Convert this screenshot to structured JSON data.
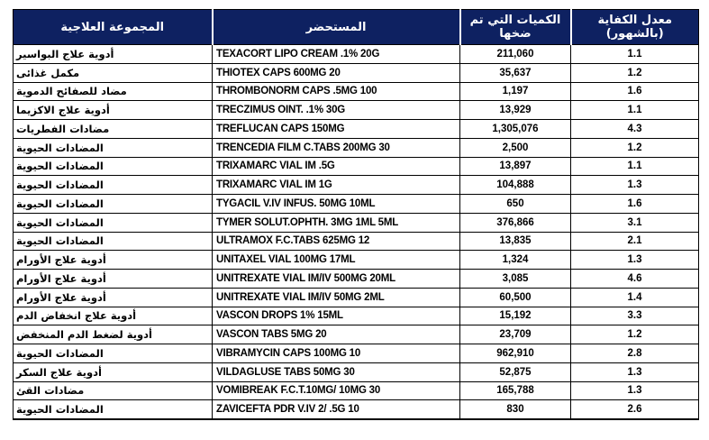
{
  "colors": {
    "header_bg": "#0e2161",
    "header_text": "#ffffff",
    "body_text": "#000000",
    "grid_border": "#000000"
  },
  "table": {
    "header": {
      "group": "المجموعة العلاجية",
      "product": "المستحضر",
      "quantity": "الكميات التي تم ضخها",
      "rate": "معدل الكفاية (بالشهور)"
    },
    "rows": [
      {
        "group": "أدوية علاج البواسير",
        "product": "TEXACORT LIPO CREAM .1% 20G",
        "quantity": "211,060",
        "rate": "1.1"
      },
      {
        "group": "مكمل غذائى",
        "product": "THIOTEX CAPS 600MG 20",
        "quantity": "35,637",
        "rate": "1.2"
      },
      {
        "group": "مضاد للصفائح الدموية",
        "product": "THROMBONORM CAPS .5MG 100",
        "quantity": "1,197",
        "rate": "1.6"
      },
      {
        "group": "أدوية علاج الاكزيما",
        "product": "TRECZIMUS OINT. .1% 30G",
        "quantity": "13,929",
        "rate": "1.1"
      },
      {
        "group": "مضادات الفطريات",
        "product": "TREFLUCAN CAPS 150MG",
        "quantity": "1,305,076",
        "rate": "4.3"
      },
      {
        "group": "المضادات الحيوية",
        "product": "TRENCEDIA FILM C.TABS 200MG 30",
        "quantity": "2,500",
        "rate": "1.2"
      },
      {
        "group": "المضادات الحيوية",
        "product": "TRIXAMARC VIAL IM .5G",
        "quantity": "13,897",
        "rate": "1.1"
      },
      {
        "group": "المضادات الحيوية",
        "product": "TRIXAMARC VIAL IM 1G",
        "quantity": "104,888",
        "rate": "1.3"
      },
      {
        "group": "المضادات الحيوية",
        "product": "TYGACIL V.IV INFUS. 50MG 10ML",
        "quantity": "650",
        "rate": "1.6"
      },
      {
        "group": "المضادات الحيوية",
        "product": "TYMER SOLUT.OPHTH. 3MG 1ML 5ML",
        "quantity": "376,866",
        "rate": "3.1"
      },
      {
        "group": "المضادات الحيوية",
        "product": "ULTRAMOX F.C.TABS 625MG 12",
        "quantity": "13,835",
        "rate": "2.1"
      },
      {
        "group": "أدوية علاج الأورام",
        "product": "UNITAXEL VIAL 100MG 17ML",
        "quantity": "1,324",
        "rate": "1.3"
      },
      {
        "group": "أدوية علاج الأورام",
        "product": "UNITREXATE VIAL IM/IV 500MG 20ML",
        "quantity": "3,085",
        "rate": "4.6"
      },
      {
        "group": "أدوية علاج الأورام",
        "product": "UNITREXATE VIAL IM/IV 50MG 2ML",
        "quantity": "60,500",
        "rate": "1.4"
      },
      {
        "group": "أدوية علاج انخفاض الدم",
        "product": "VASCON DROPS 1% 15ML",
        "quantity": "15,192",
        "rate": "3.3"
      },
      {
        "group": "أدوية لضغط الدم المنخفض",
        "product": "VASCON TABS 5MG 20",
        "quantity": "23,709",
        "rate": "1.2"
      },
      {
        "group": "المضادات الحيوية",
        "product": "VIBRAMYCIN CAPS 100MG 10",
        "quantity": "962,910",
        "rate": "2.8"
      },
      {
        "group": "أدوية علاج السكر",
        "product": "VILDAGLUSE TABS 50MG 30",
        "quantity": "52,875",
        "rate": "1.3"
      },
      {
        "group": "مضادات القئ",
        "product": "VOMIBREAK F.C.T.10MG/ 10MG 30",
        "quantity": "165,788",
        "rate": "1.3"
      },
      {
        "group": "المضادات الحيوية",
        "product": "ZAVICEFTA PDR V.IV 2/ .5G 10",
        "quantity": "830",
        "rate": "2.6"
      }
    ]
  }
}
